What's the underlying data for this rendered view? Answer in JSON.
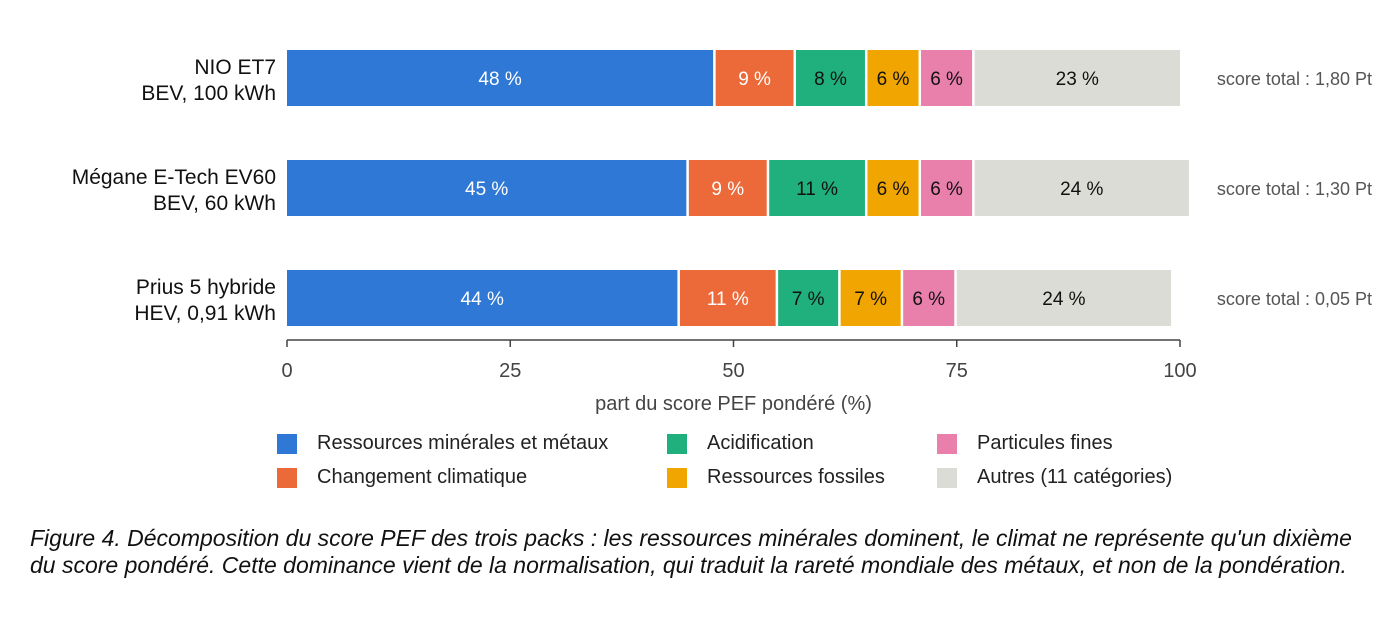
{
  "chart_data": {
    "type": "bar",
    "orientation": "horizontal",
    "stacked": true,
    "categories": [
      [
        "NIO ET7",
        "BEV, 100 kWh"
      ],
      [
        "Mégane E-Tech EV60",
        "BEV, 60 kWh"
      ],
      [
        "Prius 5 hybride",
        "HEV, 0,91 kWh"
      ]
    ],
    "series": [
      {
        "name": "Ressources minérales et métaux",
        "color": "#2f78d6",
        "label_color": "#ffffff",
        "values": [
          48,
          45,
          44
        ]
      },
      {
        "name": "Changement climatique",
        "color": "#ec6a3a",
        "label_color": "#ffffff",
        "values": [
          9,
          9,
          11
        ]
      },
      {
        "name": "Acidification",
        "color": "#1fb07e",
        "label_color": "#111111",
        "values": [
          8,
          11,
          7
        ]
      },
      {
        "name": "Ressources fossiles",
        "color": "#f0a500",
        "label_color": "#111111",
        "values": [
          6,
          6,
          7
        ]
      },
      {
        "name": "Particules fines",
        "color": "#e97fab",
        "label_color": "#111111",
        "values": [
          6,
          6,
          6
        ]
      },
      {
        "name": "Autres (11 catégories)",
        "color": "#dcdcd6",
        "label_color": "#111111",
        "values": [
          23,
          24,
          24
        ]
      }
    ],
    "bar_labels": [
      [
        "48 %",
        "9 %",
        "8 %",
        "6 %",
        "6 %",
        "23 %"
      ],
      [
        "45 %",
        "9 %",
        "11 %",
        "6 %",
        "6 %",
        "24 %"
      ],
      [
        "44 %",
        "11 %",
        "7 %",
        "7 %",
        "6 %",
        "24 %"
      ]
    ],
    "totals": [
      "score total : 1,80 Pt",
      "score total : 1,30 Pt",
      "score total : 0,05 Pt"
    ],
    "xlabel": "part du score PEF pondéré (%)",
    "xlim": [
      0,
      100
    ],
    "xticks": [
      0,
      25,
      50,
      75,
      100
    ],
    "grid": false,
    "legend_position": "bottom"
  },
  "caption": "Figure 4. Décomposition du score PEF des trois packs : les ressources minérales dominent, le climat ne représente qu'un dixième du score pondéré. Cette dominance vient de la normalisation, qui traduit la rareté mondiale des métaux, et non de la pondération."
}
